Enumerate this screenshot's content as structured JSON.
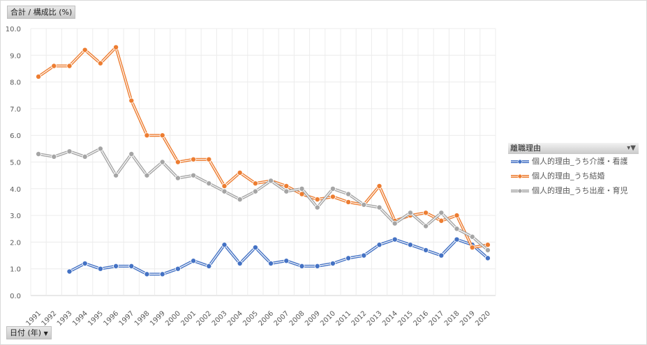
{
  "y_field_button": "合計 / 構成比 (%)",
  "x_field_button": "日付 (年)",
  "x_field_dropdown_icon": "▼",
  "legend": {
    "title": "離職理由",
    "filter_icon": "▾▼"
  },
  "chart_data": {
    "type": "line",
    "title": "",
    "xlabel": "日付 (年)",
    "ylabel": "合計 / 構成比 (%)",
    "ylim": [
      0,
      10
    ],
    "yticks": [
      "0.0",
      "1.0",
      "2.0",
      "3.0",
      "4.0",
      "5.0",
      "6.0",
      "7.0",
      "8.0",
      "9.0",
      "10.0"
    ],
    "grid": true,
    "legend_position": "right",
    "categories": [
      "1991",
      "1992",
      "1993",
      "1994",
      "1995",
      "1996",
      "1997",
      "1998",
      "1999",
      "2000",
      "2001",
      "2002",
      "2003",
      "2004",
      "2005",
      "2006",
      "2007",
      "2008",
      "2009",
      "2010",
      "2011",
      "2012",
      "2013",
      "2014",
      "2015",
      "2016",
      "2017",
      "2018",
      "2019",
      "2020"
    ],
    "series": [
      {
        "name": "個人的理由_うち介護・看護",
        "color": "#4472c4",
        "values": [
          null,
          null,
          0.9,
          1.2,
          1.0,
          1.1,
          1.1,
          0.8,
          0.8,
          1.0,
          1.3,
          1.1,
          1.9,
          1.2,
          1.8,
          1.2,
          1.3,
          1.1,
          1.1,
          1.2,
          1.4,
          1.5,
          1.9,
          2.1,
          1.9,
          1.7,
          1.5,
          2.1,
          1.9,
          1.4
        ]
      },
      {
        "name": "個人的理由_うち結婚",
        "color": "#ed7d31",
        "values": [
          8.2,
          8.6,
          8.6,
          9.2,
          8.7,
          9.3,
          7.3,
          6.0,
          6.0,
          5.0,
          5.1,
          5.1,
          4.1,
          4.6,
          4.2,
          4.3,
          4.1,
          3.8,
          3.6,
          3.7,
          3.5,
          3.4,
          4.1,
          2.8,
          3.0,
          3.1,
          2.8,
          3.0,
          1.8,
          1.9
        ]
      },
      {
        "name": "個人的理由_うち出産・育児",
        "color": "#a5a5a5",
        "values": [
          5.3,
          5.2,
          5.4,
          5.2,
          5.5,
          4.5,
          5.3,
          4.5,
          5.0,
          4.4,
          4.5,
          4.2,
          3.9,
          3.6,
          3.9,
          4.3,
          3.9,
          4.0,
          3.3,
          4.0,
          3.8,
          3.4,
          3.3,
          2.7,
          3.1,
          2.6,
          3.1,
          2.5,
          2.2,
          1.7
        ]
      }
    ]
  }
}
